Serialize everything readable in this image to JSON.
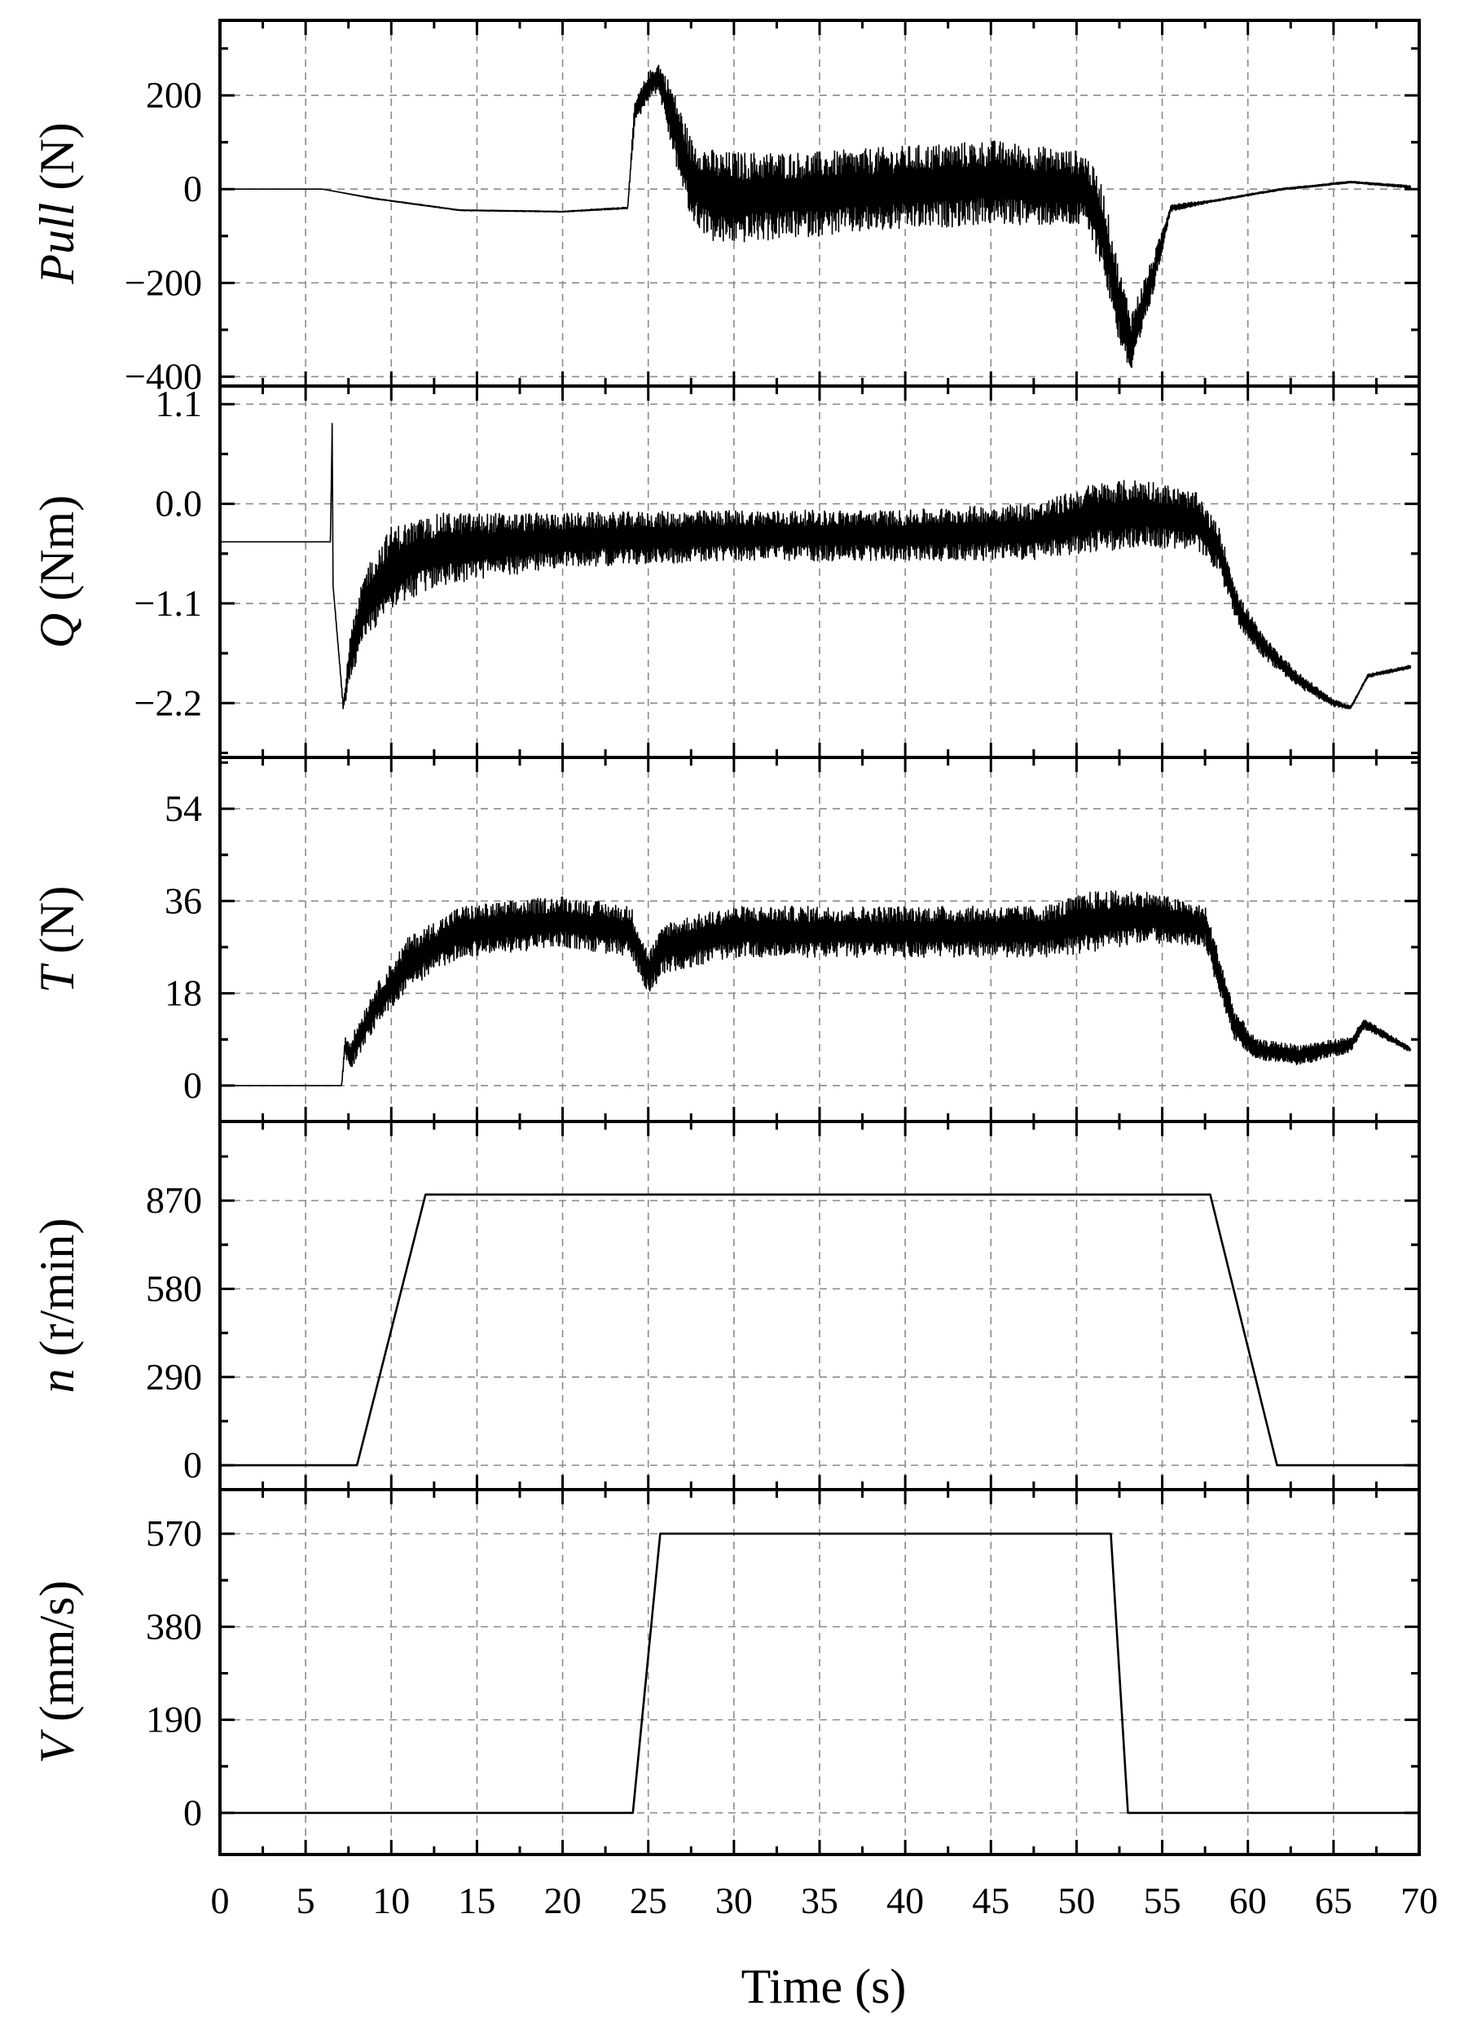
{
  "chart_data": [
    {
      "type": "line",
      "ylabel_italic": "Pull",
      "ylabel_unit": " (N)",
      "yticks": [
        200,
        0,
        -200,
        -400
      ],
      "ytick_labels": [
        "200",
        "0",
        "−200",
        "−400"
      ],
      "ylim": [
        -420,
        360
      ],
      "xlim": [
        0,
        70
      ],
      "grid": true,
      "series": [
        {
          "x": [
            0,
            6,
            9,
            14,
            20,
            23.8,
            24.2,
            25,
            25.6,
            26.4,
            27.5,
            29,
            35,
            45,
            50.5,
            51.5,
            52.5,
            53.2,
            54.5,
            55.5,
            58,
            62,
            66,
            69.5
          ],
          "y": [
            0,
            0,
            -20,
            -45,
            -48,
            -40,
            160,
            220,
            240,
            150,
            20,
            -20,
            -10,
            15,
            0,
            -80,
            -250,
            -330,
            -180,
            -40,
            -25,
            0,
            15,
            5
          ],
          "noise": [
            0,
            0,
            1,
            1,
            1,
            2,
            25,
            30,
            30,
            70,
            90,
            100,
            90,
            90,
            80,
            90,
            80,
            70,
            40,
            8,
            2,
            2,
            2,
            3
          ]
        }
      ]
    },
    {
      "type": "line",
      "ylabel_italic": "Q",
      "ylabel_unit": " (Nm)",
      "yticks": [
        1.1,
        0.0,
        -1.1,
        -2.2
      ],
      "ytick_labels": [
        "1.1",
        "0.0",
        "−1.1",
        "−2.2"
      ],
      "ylim": [
        -2.8,
        1.3
      ],
      "xlim": [
        0,
        70
      ],
      "grid": true,
      "series": [
        {
          "x": [
            0,
            6.45,
            6.55,
            6.6,
            7.2,
            7.6,
            8.5,
            10,
            13,
            20,
            30,
            40,
            48,
            51,
            54,
            57,
            58.3,
            59.5,
            61,
            63,
            65,
            66,
            67,
            69.5
          ],
          "y": [
            -0.42,
            -0.42,
            0.9,
            -0.9,
            -2.25,
            -1.7,
            -1.1,
            -0.7,
            -0.5,
            -0.4,
            -0.35,
            -0.35,
            -0.3,
            -0.15,
            -0.1,
            -0.2,
            -0.5,
            -1.2,
            -1.6,
            -1.95,
            -2.2,
            -2.25,
            -1.9,
            -1.8
          ],
          "noise": [
            0,
            0,
            0,
            0,
            0.05,
            0.25,
            0.4,
            0.45,
            0.4,
            0.3,
            0.28,
            0.28,
            0.32,
            0.38,
            0.38,
            0.32,
            0.25,
            0.18,
            0.12,
            0.08,
            0.04,
            0.02,
            0.02,
            0.02
          ]
        }
      ]
    },
    {
      "type": "line",
      "ylabel_italic": "T",
      "ylabel_unit": " (N)",
      "yticks": [
        54,
        36,
        18,
        0
      ],
      "ytick_labels": [
        "54",
        "36",
        "18",
        "0"
      ],
      "ylim": [
        -7,
        64
      ],
      "xlim": [
        0,
        70
      ],
      "grid": true,
      "series": [
        {
          "x": [
            0,
            7.1,
            7.3,
            7.6,
            9,
            11,
            14,
            20,
            24,
            25,
            26,
            30,
            40,
            48,
            51,
            54,
            57.5,
            58.3,
            59.2,
            60.5,
            63,
            66,
            66.8,
            69.5
          ],
          "y": [
            0,
            0,
            8,
            6,
            15,
            24,
            30,
            32,
            30,
            22,
            27,
            30,
            30,
            30,
            32,
            33,
            31,
            22,
            12,
            7,
            6,
            8,
            12,
            7
          ],
          "noise": [
            0,
            0,
            2,
            3,
            4,
            5,
            5,
            5,
            5,
            4,
            5,
            5,
            5,
            5,
            6,
            5,
            4,
            4,
            3,
            2,
            2,
            1.5,
            1,
            0.5
          ]
        }
      ]
    },
    {
      "type": "line",
      "ylabel_italic": "n",
      "ylabel_unit": " (r/min)",
      "yticks": [
        870,
        580,
        290,
        0
      ],
      "ytick_labels": [
        "870",
        "580",
        "290",
        "0"
      ],
      "ylim": [
        -80,
        1130
      ],
      "xlim": [
        0,
        70
      ],
      "grid": true,
      "series": [
        {
          "x": [
            0,
            8,
            12,
            57.8,
            61.7,
            70
          ],
          "y": [
            0,
            0,
            890,
            890,
            0,
            0
          ],
          "noise": [
            0,
            0,
            0,
            0,
            0,
            0
          ]
        }
      ]
    },
    {
      "type": "line",
      "ylabel_italic": "V",
      "ylabel_unit": " (mm/s)",
      "yticks": [
        570,
        380,
        190,
        0
      ],
      "ytick_labels": [
        "570",
        "380",
        "190",
        "0"
      ],
      "ylim": [
        -85,
        660
      ],
      "xlim": [
        0,
        70
      ],
      "grid": true,
      "xlabel": "Time (s)",
      "xticks": [
        0,
        5,
        10,
        15,
        20,
        25,
        30,
        35,
        40,
        45,
        50,
        55,
        60,
        65,
        70
      ],
      "xtick_labels": [
        "0",
        "5",
        "10",
        "15",
        "20",
        "25",
        "30",
        "35",
        "40",
        "45",
        "50",
        "55",
        "60",
        "65",
        "70"
      ],
      "series": [
        {
          "x": [
            0,
            24.1,
            25.7,
            52,
            53,
            70
          ],
          "y": [
            0,
            0,
            570,
            570,
            0,
            0
          ],
          "noise": [
            0,
            0,
            0,
            0,
            0,
            0
          ]
        }
      ]
    }
  ]
}
